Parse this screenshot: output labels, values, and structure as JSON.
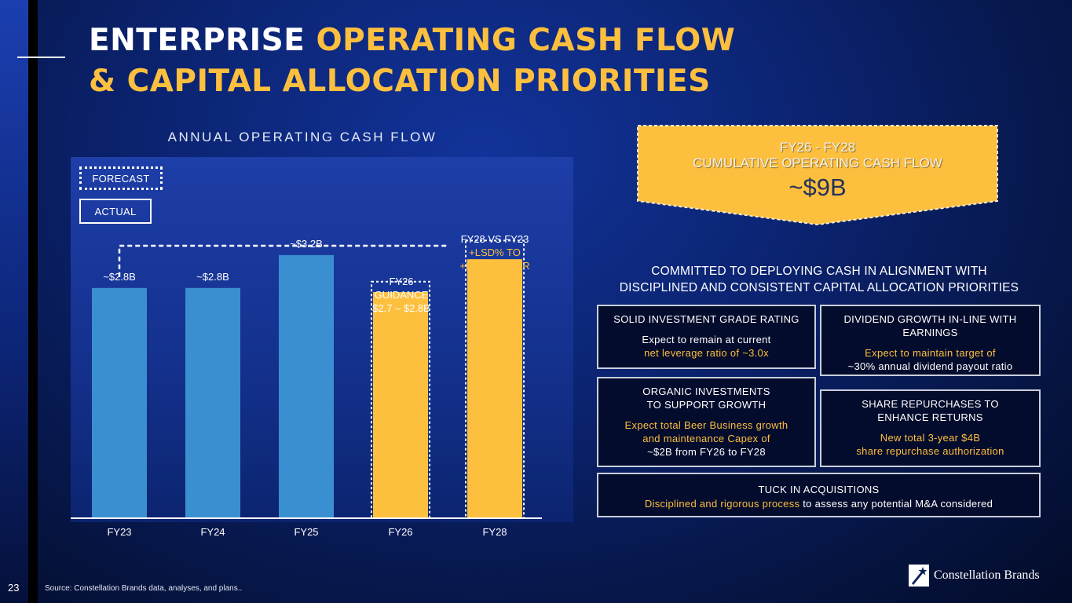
{
  "page": {
    "number": "23",
    "source": "Source:  Constellation Brands data, analyses, and plans..",
    "logo_text": "Constellation Brands"
  },
  "title": {
    "line1_white": "ENTERPRISE ",
    "line1_yellow": "OPERATING CASH FLOW",
    "line2_yellow": "& CAPITAL ALLOCATION PRIORITIES"
  },
  "legend": {
    "forecast": "FORECAST",
    "actual": "ACTUAL"
  },
  "annotations": {
    "cagr_line1": "FY28 VS FY23",
    "cagr_line2": "+LSD% TO",
    "cagr_line3": "+MSD% CAGR",
    "fy26_line1": "FY26",
    "fy26_line2": "GUIDANCE",
    "fy26_line3": "$2.7 – $2.8B"
  },
  "banner": {
    "line1": "FY26 - FY28",
    "line2": "CUMULATIVE OPERATING CASH FLOW",
    "value": "~$9B"
  },
  "committed": {
    "line1": "COMMITTED TO DEPLOYING CASH IN ALIGNMENT WITH",
    "line2": "DISCIPLINED AND CONSISTENT CAPITAL ALLOCATION PRIORITIES"
  },
  "priorities": {
    "rating": {
      "heading": "SOLID INVESTMENT GRADE RATING",
      "text1": "Expect to remain at current",
      "text2": "net leverage ratio of ~3.0x"
    },
    "dividend": {
      "heading1": "DIVIDEND GROWTH IN-LINE WITH",
      "heading2": "EARNINGS",
      "text1": "Expect to maintain target of",
      "text2": "~30% annual dividend payout ratio"
    },
    "organic": {
      "heading1": "ORGANIC INVESTMENTS",
      "heading2": "TO SUPPORT GROWTH",
      "text1": "Expect total Beer Business growth",
      "text2": "and maintenance Capex of",
      "text3": "~$2B from FY26 to FY28"
    },
    "repurchase": {
      "heading1": "SHARE REPURCHASES TO",
      "heading2": "ENHANCE RETURNS",
      "text1": "New total 3-year $4B",
      "text2": "share repurchase authorization"
    },
    "tuck": {
      "heading": "TUCK IN ACQUISITIONS",
      "text_yellow": "Disciplined and rigorous process",
      "text_white": " to assess any potential M&A considered"
    }
  },
  "colors": {
    "actual_bar": "#3a8fd0",
    "forecast_bar": "#fdbf3e",
    "accent_yellow": "#fdbf3e"
  },
  "chart_data": {
    "type": "bar",
    "title": "ANNUAL OPERATING CASH FLOW",
    "categories": [
      "FY23",
      "FY24",
      "FY25",
      "FY26",
      "FY28"
    ],
    "values": [
      2.8,
      2.8,
      3.2,
      2.75,
      3.15
    ],
    "status": [
      "actual",
      "actual",
      "actual",
      "forecast",
      "forecast"
    ],
    "data_labels": [
      "~$2.8B",
      "~$2.8B",
      "~$3.2B",
      "",
      ""
    ],
    "forecast_range_top": [
      null,
      null,
      null,
      2.8,
      3.3
    ],
    "ylim": [
      0,
      3.6
    ],
    "xlabel": "",
    "ylabel": "",
    "unit": "$B"
  }
}
